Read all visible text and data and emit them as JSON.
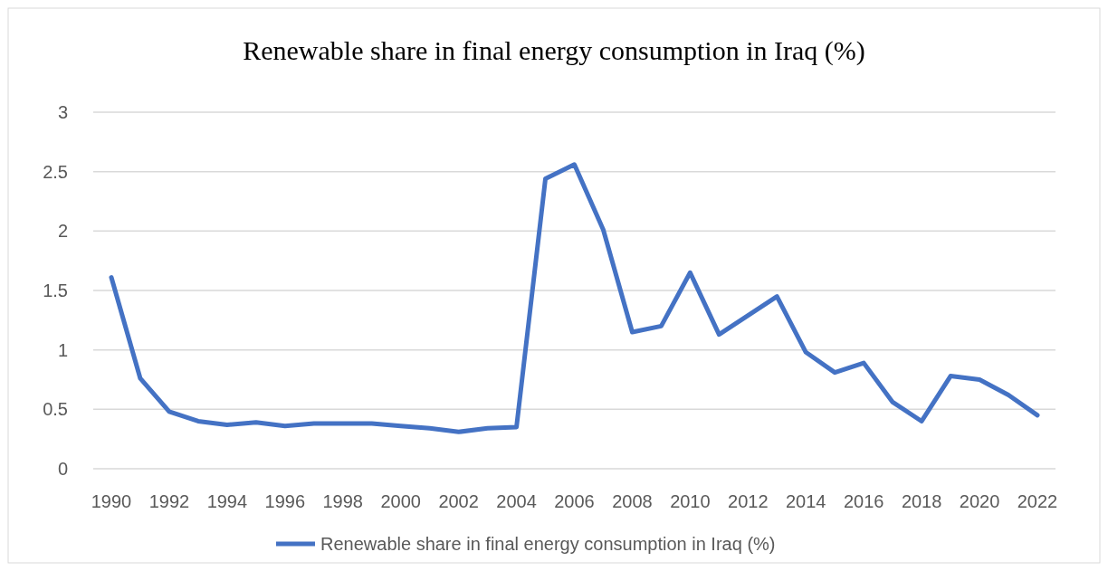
{
  "chart_data": {
    "type": "line",
    "title": "Renewable share in final energy consumption  in Iraq (%)",
    "categories": [
      "1990",
      null,
      "1992",
      null,
      "1994",
      null,
      "1996",
      null,
      "1998",
      null,
      "2000",
      null,
      "2002",
      null,
      "2004",
      null,
      "2006",
      null,
      "2008",
      null,
      "2010",
      null,
      "2012",
      null,
      "2014",
      null,
      "2016",
      null,
      "2018",
      null,
      "2020",
      null,
      "2022"
    ],
    "series": [
      {
        "name": "Renewable share in final energy consumption  in Iraq (%)",
        "color": "#4472c4",
        "values": [
          1.61,
          0.76,
          0.48,
          0.4,
          0.37,
          0.39,
          0.36,
          0.38,
          0.38,
          0.38,
          0.36,
          0.34,
          0.31,
          0.34,
          0.35,
          2.44,
          2.56,
          2.01,
          1.15,
          1.2,
          1.65,
          1.13,
          1.29,
          1.45,
          0.98,
          0.81,
          0.89,
          0.56,
          0.4,
          0.78,
          0.75,
          0.62,
          0.45
        ]
      }
    ],
    "ylim": [
      0,
      3
    ],
    "yticks": [
      0,
      0.5,
      1,
      1.5,
      2,
      2.5,
      3
    ],
    "grid": "y",
    "legend": "bottom",
    "marker": "none",
    "line_style": "solid"
  }
}
